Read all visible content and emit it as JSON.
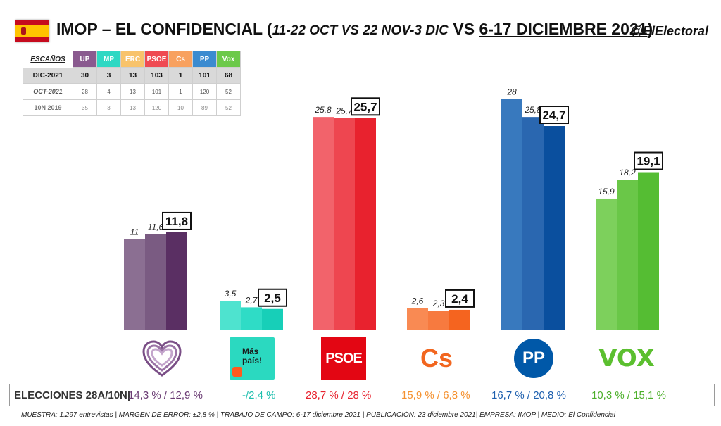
{
  "header": {
    "title_a": "IMOP – EL CONFIDENCIAL (",
    "title_b": "11-22 OCT VS 22 NOV-3 DIC",
    "title_c": " VS ",
    "title_d": "6-17 DICIEMBRE 2021",
    "title_e": ")",
    "handle": "@ElElectoral"
  },
  "seats_table": {
    "label": "ESCAÑOS",
    "parties": [
      {
        "name": "UP",
        "color": "#8a5a8f"
      },
      {
        "name": "MP",
        "color": "#2ed8c3"
      },
      {
        "name": "ERC",
        "color": "#f8c36b"
      },
      {
        "name": "PSOE",
        "color": "#ef4a52"
      },
      {
        "name": "Cs",
        "color": "#f8a15f"
      },
      {
        "name": "PP",
        "color": "#3b8bd0"
      },
      {
        "name": "Vox",
        "color": "#6cc94a"
      }
    ],
    "rows": [
      {
        "label": "DIC-2021",
        "values": [
          "30",
          "3",
          "13",
          "103",
          "1",
          "101",
          "68"
        ]
      },
      {
        "label": "OCT-2021",
        "values": [
          "28",
          "4",
          "13",
          "101",
          "1",
          "120",
          "52"
        ]
      },
      {
        "label": "10N 2019",
        "values": [
          "35",
          "3",
          "13",
          "120",
          "10",
          "89",
          "52"
        ]
      }
    ]
  },
  "chart_data": {
    "type": "bar",
    "categories": [
      "UP",
      "Más País",
      "PSOE",
      "Cs",
      "PP",
      "Vox"
    ],
    "series": [
      {
        "values": [
          11,
          3.5,
          25.8,
          2.6,
          28,
          15.9
        ]
      },
      {
        "values": [
          11.6,
          2.7,
          25.7,
          2.3,
          25.8,
          18.2
        ]
      },
      {
        "values": [
          11.8,
          2.5,
          25.7,
          2.4,
          24.7,
          19.1
        ]
      }
    ],
    "labels": [
      [
        "11",
        "11,6",
        "11,8"
      ],
      [
        "3,5",
        "2,7",
        "2,5"
      ],
      [
        "25,8",
        "25,7",
        "25,7"
      ],
      [
        "2,6",
        "2,3",
        "2,4"
      ],
      [
        "28",
        "25,8",
        "24,7"
      ],
      [
        "15,9",
        "18,2",
        "19,1"
      ]
    ],
    "colors": [
      [
        "#8b6f92",
        "#7a5b82",
        "#5a2f63"
      ],
      [
        "#4ee3cf",
        "#2fdcc6",
        "#17cfb8"
      ],
      [
        "#f2636b",
        "#ee4650",
        "#e8222e"
      ],
      [
        "#f98a53",
        "#f77a3f",
        "#f5641f"
      ],
      [
        "#3879be",
        "#2a67b0",
        "#0a4f9e"
      ],
      [
        "#7dd05c",
        "#6ac748",
        "#55bd33"
      ]
    ],
    "ylim": [
      0,
      30
    ]
  },
  "logos": {
    "mp_text": "Más país!",
    "psoe_text": "PSOE",
    "cs_text": "Cs",
    "pp_text": "PP",
    "vox_text": "VOX"
  },
  "results": {
    "label": "ELECCIONES 28A/10N|",
    "items": [
      {
        "text": "14,3 % / 12,9 %",
        "color": "#6b3c74"
      },
      {
        "text": "-/2,4 %",
        "color": "#1fbfae"
      },
      {
        "text": "28,7  % / 28 %",
        "color": "#e8222e"
      },
      {
        "text": "15,9 % / 6,8 %",
        "color": "#f5912f"
      },
      {
        "text": "16,7 % / 20,8 %",
        "color": "#1d5fae"
      },
      {
        "text": "10,3 % / 15,1 %",
        "color": "#4caf2a"
      }
    ]
  },
  "footer": "MUESTRA: 1.297 entrevistas | MARGEN DE ERROR: ±2,8 % | TRABAJO DE CAMPO: 6-17 diciembre 2021  | PUBLICACIÓN: 23 diciembre 2021| EMPRESA: IMOP | MEDIO: El Confidencial"
}
